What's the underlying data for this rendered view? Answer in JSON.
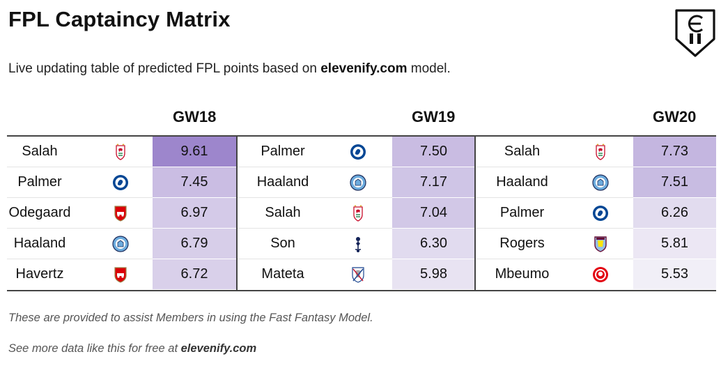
{
  "title": "FPL Captaincy Matrix",
  "subtitle": {
    "prefix": "Live updating table of predicted FPL points based on ",
    "site": "elevenify.com",
    "suffix": " model."
  },
  "gameweeks": [
    {
      "label": "GW18",
      "rows": [
        {
          "player": "Salah",
          "crest": "liverpool-crest-icon",
          "value": "9.61",
          "level": 9.61
        },
        {
          "player": "Palmer",
          "crest": "chelsea-crest-icon",
          "value": "7.45",
          "level": 7.45
        },
        {
          "player": "Odegaard",
          "crest": "arsenal-crest-icon",
          "value": "6.97",
          "level": 6.97
        },
        {
          "player": "Haaland",
          "crest": "man-city-crest-icon",
          "value": "6.79",
          "level": 6.79
        },
        {
          "player": "Havertz",
          "crest": "arsenal-crest-icon",
          "value": "6.72",
          "level": 6.72
        }
      ]
    },
    {
      "label": "GW19",
      "rows": [
        {
          "player": "Palmer",
          "crest": "chelsea-crest-icon",
          "value": "7.50",
          "level": 7.5
        },
        {
          "player": "Haaland",
          "crest": "man-city-crest-icon",
          "value": "7.17",
          "level": 7.17
        },
        {
          "player": "Salah",
          "crest": "liverpool-crest-icon",
          "value": "7.04",
          "level": 7.04
        },
        {
          "player": "Son",
          "crest": "tottenham-crest-icon",
          "value": "6.30",
          "level": 6.3
        },
        {
          "player": "Mateta",
          "crest": "crystal-palace-crest-icon",
          "value": "5.98",
          "level": 5.98
        }
      ]
    },
    {
      "label": "GW20",
      "rows": [
        {
          "player": "Salah",
          "crest": "liverpool-crest-icon",
          "value": "7.73",
          "level": 7.73
        },
        {
          "player": "Haaland",
          "crest": "man-city-crest-icon",
          "value": "7.51",
          "level": 7.51
        },
        {
          "player": "Palmer",
          "crest": "chelsea-crest-icon",
          "value": "6.26",
          "level": 6.26
        },
        {
          "player": "Rogers",
          "crest": "aston-villa-crest-icon",
          "value": "5.81",
          "level": 5.81
        },
        {
          "player": "Mbeumo",
          "crest": "brentford-crest-icon",
          "value": "5.53",
          "level": 5.53
        }
      ]
    }
  ],
  "colors": {
    "heat_high": "#9d86cc",
    "heat_low": "#f4f2f8",
    "rule": "#444444"
  },
  "footnotes": {
    "line1": "These are provided to assist Members in using the Fast Fantasy Model.",
    "line2_prefix": "See more data like this for free at ",
    "line2_site": "elevenify.com"
  }
}
